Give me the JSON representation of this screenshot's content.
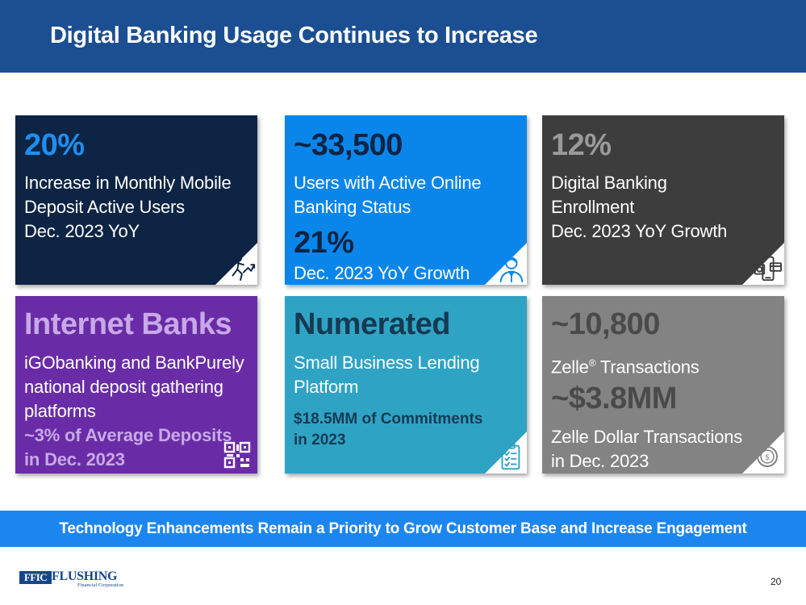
{
  "header": {
    "title": "Digital Banking Usage Continues to Increase"
  },
  "tiles": [
    {
      "big": "20%",
      "lines": [
        "Increase in Monthly Mobile",
        "Deposit Active Users",
        "Dec. 2023 YoY"
      ],
      "icon": "growth-person-icon",
      "color": "#0d2444"
    },
    {
      "big": "~33,500",
      "lines": [
        "Users with Active Online",
        "Banking Status"
      ],
      "big2": "21%",
      "sub": "Dec. 2023 YoY Growth",
      "icon": "user-icon",
      "color": "#0a86ea"
    },
    {
      "big": "12%",
      "lines": [
        "Digital Banking",
        "Enrollment",
        "Dec. 2023 YoY Growth"
      ],
      "icon": "mobile-payment-icon",
      "color": "#3d3d3d"
    },
    {
      "big": "Internet Banks",
      "lines": [
        "iGObanking and BankPurely",
        "national deposit gathering",
        "platforms"
      ],
      "highlight": [
        "~3% of Average Deposits",
        "in Dec. 2023"
      ],
      "icon": "qr-code-icon",
      "color": "#6a2ca6",
      "big_color": "#c8a9e8",
      "highlight_color": "#c8a9e8"
    },
    {
      "big": "Numerated",
      "lines": [
        "Small Business Lending",
        "Platform"
      ],
      "highlight": [
        "$18.5MM of Commitments",
        "in 2023"
      ],
      "icon": "clipboard-icon",
      "color": "#2fa3c4",
      "big_color": "#153a52",
      "highlight_color": "#153a52"
    },
    {
      "big": "~10,800",
      "zelle": {
        "name": "Zelle",
        "mark": "®",
        "rest": " Transactions"
      },
      "big2": "~$3.8MM",
      "lines": [
        "Zelle Dollar Transactions",
        "in Dec. 2023"
      ],
      "icon": "coin-icon",
      "color": "#838383"
    }
  ],
  "banner": {
    "text": "Technology Enhancements Remain a Priority to Grow Customer Base and Increase Engagement"
  },
  "footer": {
    "logo_box": "FFIC",
    "logo_name": "FLUSHING",
    "logo_sub": "Financial Corporation",
    "page_number": "20"
  }
}
